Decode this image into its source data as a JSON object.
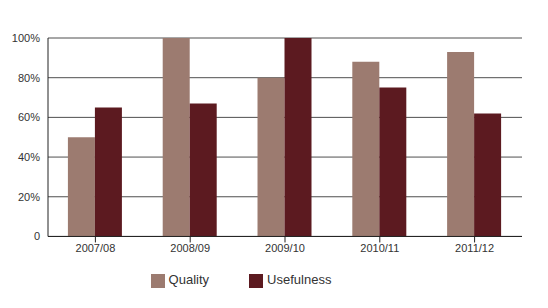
{
  "chart_data": {
    "type": "bar",
    "categories": [
      "2007/08",
      "2008/09",
      "2009/10",
      "2010/11",
      "2011/12"
    ],
    "series": [
      {
        "name": "Quality",
        "color": "#9c7b70",
        "values": [
          50,
          100,
          80,
          88,
          93
        ]
      },
      {
        "name": "Usefulness",
        "color": "#5c1a20",
        "values": [
          65,
          67,
          100,
          75,
          62
        ]
      }
    ],
    "ylim": [
      0,
      100
    ],
    "yticks": [
      0,
      {
        "value": 20,
        "label": "20%"
      },
      {
        "value": 40,
        "label": "40%"
      },
      {
        "value": 60,
        "label": "60%"
      },
      {
        "value": 80,
        "label": "80%"
      },
      {
        "value": 100,
        "label": "100%"
      }
    ],
    "grid": true,
    "legend": "bottom"
  }
}
